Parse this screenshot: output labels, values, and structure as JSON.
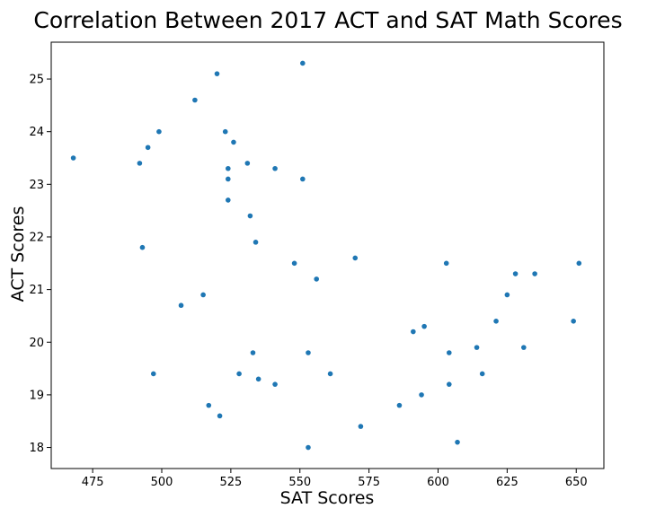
{
  "chart_data": {
    "type": "scatter",
    "title": "Correlation Between 2017 ACT and SAT Math Scores",
    "xlabel": "SAT Scores",
    "ylabel": "ACT Scores",
    "xlim": [
      460,
      660
    ],
    "ylim": [
      17.6,
      25.7
    ],
    "xticks": [
      475,
      500,
      525,
      550,
      575,
      600,
      625,
      650
    ],
    "yticks": [
      18,
      19,
      20,
      21,
      22,
      23,
      24,
      25
    ],
    "grid": false,
    "point_color": "#1f77b4",
    "points": [
      {
        "x": 468,
        "y": 23.5
      },
      {
        "x": 492,
        "y": 23.4
      },
      {
        "x": 493,
        "y": 21.8
      },
      {
        "x": 495,
        "y": 23.7
      },
      {
        "x": 497,
        "y": 19.4
      },
      {
        "x": 499,
        "y": 24.0
      },
      {
        "x": 507,
        "y": 20.7
      },
      {
        "x": 512,
        "y": 24.6
      },
      {
        "x": 515,
        "y": 20.9
      },
      {
        "x": 517,
        "y": 18.8
      },
      {
        "x": 520,
        "y": 25.1
      },
      {
        "x": 521,
        "y": 18.6
      },
      {
        "x": 523,
        "y": 24.0
      },
      {
        "x": 524,
        "y": 23.3
      },
      {
        "x": 524,
        "y": 23.1
      },
      {
        "x": 524,
        "y": 22.7
      },
      {
        "x": 526,
        "y": 23.8
      },
      {
        "x": 528,
        "y": 19.4
      },
      {
        "x": 531,
        "y": 23.4
      },
      {
        "x": 532,
        "y": 22.4
      },
      {
        "x": 533,
        "y": 19.8
      },
      {
        "x": 534,
        "y": 21.9
      },
      {
        "x": 535,
        "y": 19.3
      },
      {
        "x": 541,
        "y": 23.3
      },
      {
        "x": 541,
        "y": 19.2
      },
      {
        "x": 548,
        "y": 21.5
      },
      {
        "x": 551,
        "y": 25.3
      },
      {
        "x": 551,
        "y": 23.1
      },
      {
        "x": 553,
        "y": 19.8
      },
      {
        "x": 553,
        "y": 18.0
      },
      {
        "x": 556,
        "y": 21.2
      },
      {
        "x": 561,
        "y": 19.4
      },
      {
        "x": 570,
        "y": 21.6
      },
      {
        "x": 572,
        "y": 18.4
      },
      {
        "x": 586,
        "y": 18.8
      },
      {
        "x": 591,
        "y": 20.2
      },
      {
        "x": 594,
        "y": 19.0
      },
      {
        "x": 595,
        "y": 20.3
      },
      {
        "x": 603,
        "y": 21.5
      },
      {
        "x": 604,
        "y": 19.8
      },
      {
        "x": 604,
        "y": 19.2
      },
      {
        "x": 607,
        "y": 18.1
      },
      {
        "x": 614,
        "y": 19.9
      },
      {
        "x": 616,
        "y": 19.4
      },
      {
        "x": 621,
        "y": 20.4
      },
      {
        "x": 625,
        "y": 20.9
      },
      {
        "x": 628,
        "y": 21.3
      },
      {
        "x": 631,
        "y": 19.9
      },
      {
        "x": 635,
        "y": 21.3
      },
      {
        "x": 649,
        "y": 20.4
      },
      {
        "x": 651,
        "y": 21.5
      }
    ]
  }
}
